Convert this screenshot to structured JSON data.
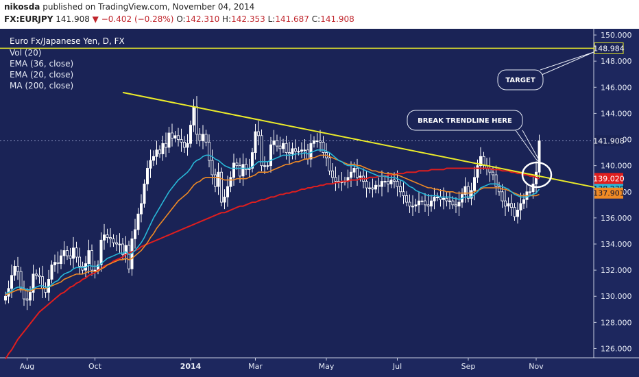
{
  "header": {
    "author": "nikosda",
    "published_text": "published on TradingView.com, November 04, 2014",
    "symbol": "FX:EURJPY",
    "last": "141.908",
    "change": "▼ −0.402 (−0.28%)",
    "open_label": "O:",
    "open": "142.310",
    "high_label": "H:",
    "high": "142.353",
    "low_label": "L:",
    "low": "141.687",
    "close_label": "C:",
    "close": "141.908"
  },
  "legend": {
    "title": "Euro Fx/Japanese Yen, D, FX",
    "items": [
      "Vol (20)",
      "EMA (36, close)",
      "EMA (20, close)",
      "MA (200, close)"
    ]
  },
  "annotations": {
    "target": "TARGET",
    "break": "BREAK TRENDLINE HERE"
  },
  "price_tags": {
    "target": "148.984",
    "last": "141.908",
    "ma200": "139.020",
    "ema20": "138.238",
    "ema36": "137.901"
  },
  "colors": {
    "background": "#1a2356",
    "candle": "#ffffff",
    "ema20": "#28b8d8",
    "ema36": "#f08a24",
    "ma200": "#e01e1e",
    "trendline": "#ecec2a",
    "target_line": "#ecec2a"
  },
  "chart_data": {
    "type": "line",
    "title": "Euro Fx/Japanese Yen, D, FX",
    "xlabel": "",
    "ylabel": "",
    "ylim": [
      125.5,
      151.0
    ],
    "x_ticks": [
      "Aug",
      "Oct",
      "2014",
      "Mar",
      "May",
      "Jul",
      "Sep",
      "Nov"
    ],
    "y_ticks": [
      "126.000",
      "128.000",
      "130.000",
      "132.000",
      "134.000",
      "136.000",
      "138.000",
      "140.000",
      "142.000",
      "144.000",
      "146.000",
      "148.000",
      "150.000"
    ],
    "y_tick_values": [
      126,
      128,
      130,
      132,
      134,
      136,
      138,
      140,
      142,
      144,
      146,
      148,
      150
    ],
    "x_tick_index": [
      7,
      29,
      60,
      81,
      104,
      127,
      150,
      172
    ],
    "price": [
      130.0,
      130.6,
      131.6,
      132.3,
      131.9,
      130.6,
      129.8,
      129.7,
      130.3,
      131.7,
      131.6,
      131.5,
      130.6,
      130.3,
      131.3,
      132.4,
      132.6,
      132.5,
      133.1,
      133.5,
      133.1,
      132.9,
      133.7,
      133.0,
      132.3,
      132.0,
      132.5,
      133.5,
      132.0,
      132.0,
      132.4,
      134.3,
      134.7,
      134.5,
      134.4,
      134.1,
      134.0,
      134.0,
      133.2,
      133.9,
      132.1,
      134.4,
      135.1,
      136.3,
      137.1,
      138.6,
      139.8,
      140.4,
      140.7,
      141.2,
      140.9,
      141.7,
      141.4,
      142.5,
      142.1,
      142.3,
      142.0,
      141.8,
      141.4,
      141.7,
      143.1,
      144.5,
      142.4,
      141.9,
      142.4,
      141.8,
      140.4,
      139.3,
      138.4,
      139.5,
      137.2,
      137.6,
      138.4,
      139.1,
      140.2,
      140.0,
      139.2,
      140.1,
      139.7,
      139.8,
      141.0,
      142.6,
      142.3,
      140.0,
      140.0,
      140.0,
      141.6,
      141.9,
      141.5,
      141.3,
      141.7,
      141.0,
      140.9,
      141.3,
      141.1,
      141.1,
      141.2,
      141.2,
      140.5,
      141.7,
      141.9,
      141.9,
      141.8,
      141.0,
      140.6,
      139.6,
      139.1,
      138.8,
      138.7,
      138.8,
      138.8,
      139.1,
      139.5,
      139.8,
      139.1,
      139.2,
      138.8,
      138.3,
      138.3,
      138.2,
      138.5,
      138.4,
      138.8,
      138.8,
      138.6,
      138.9,
      138.8,
      138.4,
      138.0,
      137.7,
      137.2,
      136.9,
      136.9,
      137.0,
      137.3,
      137.3,
      137.0,
      136.9,
      137.3,
      137.6,
      137.6,
      137.4,
      137.5,
      137.3,
      137.3,
      137.0,
      136.9,
      137.2,
      137.8,
      138.4,
      137.5,
      138.1,
      139.1,
      140.0,
      140.7,
      140.0,
      139.8,
      139.5,
      139.3,
      138.4,
      138.0,
      137.3,
      136.9,
      137.1,
      136.8,
      136.1,
      136.6,
      137.1,
      137.4,
      138.0,
      138.0,
      138.6,
      139.5,
      141.9
    ],
    "series": [
      {
        "name": "EMA (20, close)",
        "values": [
          130.2,
          130.3,
          130.4,
          130.6,
          130.7,
          130.7,
          130.6,
          130.5,
          130.5,
          130.6,
          130.7,
          130.8,
          130.8,
          130.7,
          130.7,
          130.9,
          131.1,
          131.2,
          131.5,
          131.7,
          131.8,
          131.9,
          132.1,
          132.2,
          132.2,
          132.2,
          132.2,
          132.4,
          132.3,
          132.3,
          132.3,
          132.5,
          132.7,
          132.9,
          133.0,
          133.1,
          133.2,
          133.3,
          133.3,
          133.4,
          133.2,
          133.3,
          133.5,
          133.8,
          134.1,
          134.5,
          135.0,
          135.5,
          136.0,
          136.4,
          136.8,
          137.2,
          137.6,
          138.0,
          138.3,
          138.6,
          138.9,
          139.1,
          139.3,
          139.5,
          139.8,
          140.2,
          140.4,
          140.5,
          140.7,
          140.8,
          140.8,
          140.7,
          140.5,
          140.4,
          140.2,
          140.0,
          139.9,
          139.8,
          139.8,
          139.8,
          139.8,
          139.8,
          139.8,
          139.8,
          139.9,
          140.1,
          140.3,
          140.3,
          140.3,
          140.3,
          140.4,
          140.5,
          140.6,
          140.7,
          140.8,
          140.8,
          140.8,
          140.8,
          140.9,
          140.9,
          140.9,
          141.0,
          140.9,
          141.0,
          141.1,
          141.2,
          141.2,
          141.2,
          141.1,
          141.0,
          140.8,
          140.6,
          140.4,
          140.3,
          140.1,
          140.0,
          140.0,
          140.0,
          139.9,
          139.8,
          139.7,
          139.6,
          139.5,
          139.4,
          139.3,
          139.2,
          139.2,
          139.2,
          139.1,
          139.1,
          139.1,
          139.0,
          138.9,
          138.8,
          138.6,
          138.4,
          138.3,
          138.1,
          138.0,
          137.9,
          137.8,
          137.7,
          137.7,
          137.7,
          137.7,
          137.6,
          137.6,
          137.6,
          137.6,
          137.5,
          137.5,
          137.4,
          137.5,
          137.6,
          137.6,
          137.6,
          137.8,
          138.0,
          138.3,
          138.4,
          138.5,
          138.6,
          138.6,
          138.6,
          138.5,
          138.4,
          138.3,
          138.2,
          138.0,
          137.8,
          137.7,
          137.6,
          137.6,
          137.6,
          137.7,
          137.8,
          137.9,
          138.2
        ]
      },
      {
        "name": "EMA (36, close)",
        "values": [
          130.1,
          130.2,
          130.3,
          130.4,
          130.5,
          130.5,
          130.5,
          130.4,
          130.4,
          130.5,
          130.6,
          130.6,
          130.6,
          130.6,
          130.7,
          130.8,
          130.9,
          131.0,
          131.1,
          131.3,
          131.4,
          131.5,
          131.6,
          131.7,
          131.7,
          131.7,
          131.8,
          131.9,
          131.9,
          131.9,
          131.9,
          132.1,
          132.2,
          132.4,
          132.5,
          132.6,
          132.7,
          132.8,
          132.8,
          132.9,
          132.8,
          132.9,
          133.1,
          133.3,
          133.5,
          133.8,
          134.1,
          134.5,
          134.8,
          135.2,
          135.5,
          135.8,
          136.1,
          136.4,
          136.7,
          137.0,
          137.3,
          137.5,
          137.7,
          137.9,
          138.2,
          138.5,
          138.7,
          138.8,
          139.0,
          139.1,
          139.1,
          139.1,
          139.1,
          139.1,
          139.0,
          138.9,
          138.9,
          138.9,
          138.9,
          139.0,
          139.0,
          139.0,
          139.0,
          139.1,
          139.2,
          139.3,
          139.5,
          139.5,
          139.5,
          139.5,
          139.6,
          139.7,
          139.8,
          139.9,
          140.0,
          140.1,
          140.1,
          140.2,
          140.3,
          140.3,
          140.4,
          140.5,
          140.5,
          140.6,
          140.6,
          140.7,
          140.8,
          140.8,
          140.8,
          140.7,
          140.6,
          140.5,
          140.4,
          140.3,
          140.2,
          140.1,
          140.1,
          140.1,
          140.0,
          140.0,
          139.9,
          139.8,
          139.7,
          139.6,
          139.6,
          139.5,
          139.5,
          139.4,
          139.4,
          139.4,
          139.3,
          139.3,
          139.2,
          139.1,
          139.0,
          138.9,
          138.8,
          138.7,
          138.6,
          138.5,
          138.4,
          138.3,
          138.3,
          138.2,
          138.2,
          138.1,
          138.1,
          138.0,
          138.0,
          138.0,
          137.9,
          137.9,
          137.9,
          137.9,
          137.9,
          137.9,
          138.0,
          138.1,
          138.2,
          138.3,
          138.3,
          138.3,
          138.3,
          138.3,
          138.3,
          138.2,
          138.2,
          138.1,
          138.0,
          137.9,
          137.8,
          137.7,
          137.7,
          137.7,
          137.7,
          137.7,
          137.7,
          137.8
        ]
      },
      {
        "name": "MA (200, close)",
        "values": [
          125.2,
          125.6,
          125.9,
          126.3,
          126.7,
          127.0,
          127.3,
          127.6,
          127.9,
          128.2,
          128.5,
          128.8,
          129.0,
          129.2,
          129.4,
          129.6,
          129.8,
          130.0,
          130.2,
          130.3,
          130.5,
          130.7,
          130.8,
          131.0,
          131.1,
          131.3,
          131.4,
          131.6,
          131.7,
          131.8,
          132.0,
          132.1,
          132.3,
          132.4,
          132.5,
          132.7,
          132.8,
          132.9,
          133.0,
          133.2,
          133.3,
          133.4,
          133.5,
          133.6,
          133.8,
          133.9,
          134.0,
          134.1,
          134.2,
          134.3,
          134.4,
          134.5,
          134.6,
          134.7,
          134.8,
          134.9,
          135.0,
          135.1,
          135.2,
          135.3,
          135.4,
          135.5,
          135.6,
          135.7,
          135.8,
          135.9,
          136.0,
          136.1,
          136.2,
          136.3,
          136.4,
          136.4,
          136.5,
          136.6,
          136.7,
          136.8,
          136.9,
          136.9,
          137.0,
          137.1,
          137.2,
          137.2,
          137.3,
          137.4,
          137.4,
          137.5,
          137.6,
          137.6,
          137.7,
          137.8,
          137.8,
          137.9,
          137.9,
          138.0,
          138.0,
          138.1,
          138.2,
          138.2,
          138.3,
          138.3,
          138.4,
          138.4,
          138.5,
          138.5,
          138.6,
          138.6,
          138.6,
          138.7,
          138.7,
          138.8,
          138.8,
          138.8,
          138.9,
          138.9,
          138.9,
          139.0,
          139.0,
          139.0,
          139.1,
          139.1,
          139.1,
          139.2,
          139.2,
          139.2,
          139.3,
          139.3,
          139.3,
          139.4,
          139.4,
          139.4,
          139.5,
          139.5,
          139.5,
          139.5,
          139.6,
          139.6,
          139.6,
          139.6,
          139.7,
          139.7,
          139.7,
          139.7,
          139.7,
          139.8,
          139.8,
          139.8,
          139.8,
          139.8,
          139.8,
          139.8,
          139.8,
          139.8,
          139.8,
          139.8,
          139.8,
          139.8,
          139.8,
          139.8,
          139.7,
          139.7,
          139.7,
          139.6,
          139.6,
          139.6,
          139.5,
          139.5,
          139.4,
          139.4,
          139.3,
          139.3,
          139.2,
          139.2,
          139.1,
          139.0
        ]
      }
    ],
    "trendline": {
      "from": [
        38,
        145.6
      ],
      "to": [
        194,
        138.2
      ]
    },
    "target_level": 148.984
  }
}
